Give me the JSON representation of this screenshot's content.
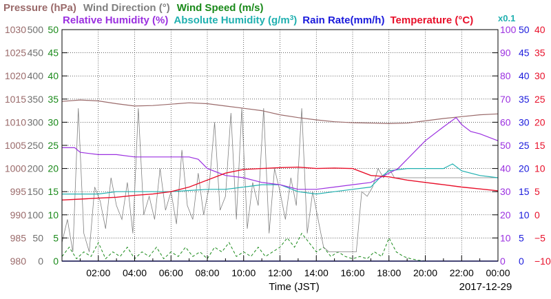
{
  "chart_data": {
    "type": "line",
    "legend": {
      "row1": [
        {
          "key": "pressure",
          "text": "Pressure (hPa)",
          "color": "#9a6a6a"
        },
        {
          "key": "wind_dir",
          "text": "Wind Direction (°)",
          "color": "#7f7f7f"
        },
        {
          "key": "wind_speed",
          "text": "Wind Speed (m/s)",
          "color": "#1a8a1a"
        }
      ],
      "row2": [
        {
          "key": "rel_hum",
          "text": "Relative Humidity (%)",
          "color": "#9b30e0"
        },
        {
          "key": "abs_hum",
          "text": "Absolute Humidity (g/m",
          "sup": "3",
          "tail": ")",
          "color": "#20b0b0"
        },
        {
          "key": "rain",
          "text": "Rain Rate(mm/h)",
          "color": "#1a1adc"
        },
        {
          "key": "temp",
          "text": "Temperature (°C)",
          "color": "#e8102a"
        },
        {
          "key": "scale_note",
          "text": "x0.1",
          "color": "#20b0b0"
        }
      ]
    },
    "x_axis": {
      "label": "Time (JST)",
      "date": "2017-12-29",
      "ticks": [
        "02:00",
        "04:00",
        "06:00",
        "08:00",
        "10:00",
        "12:00",
        "14:00",
        "16:00",
        "18:00",
        "20:00",
        "22:00",
        "00:00"
      ],
      "range_hours": [
        0,
        24
      ]
    },
    "left_axes": [
      {
        "key": "pressure",
        "range": [
          980,
          1030
        ],
        "ticks": [
          "1030",
          "1025",
          "1020",
          "1015",
          "1010",
          "1005",
          "1000",
          "995",
          "990",
          "985",
          "980"
        ],
        "color": "#9a6a6a"
      },
      {
        "key": "wind_dir",
        "range": [
          0,
          500
        ],
        "ticks": [
          "500",
          "450",
          "400",
          "350",
          "300",
          "250",
          "200",
          "150",
          "100",
          "50",
          "0"
        ],
        "color": "#6f6f6f"
      },
      {
        "key": "wind_speed",
        "range": [
          0,
          50
        ],
        "ticks": [
          "50",
          "45",
          "40",
          "35",
          "30",
          "25",
          "20",
          "15",
          "10",
          "5",
          "0"
        ],
        "color": "#1a8a1a"
      }
    ],
    "right_axes": [
      {
        "key": "rel_hum",
        "range": [
          0,
          100
        ],
        "ticks": [
          "100",
          "90",
          "80",
          "70",
          "60",
          "50",
          "40",
          "30",
          "20",
          "10",
          "0"
        ],
        "color": "#9b30e0"
      },
      {
        "key": "rain",
        "range": [
          0,
          50
        ],
        "ticks": [
          "50",
          "45",
          "40",
          "35",
          "30",
          "25",
          "20",
          "15",
          "10",
          "5",
          "0"
        ],
        "color": "#1a1adc"
      },
      {
        "key": "temp",
        "range": [
          -10,
          40
        ],
        "ticks": [
          "40",
          "35",
          "30",
          "25",
          "20",
          "15",
          "10",
          "5",
          "0",
          "−5",
          "−10"
        ],
        "color": "#e8102a"
      }
    ],
    "series": [
      {
        "name": "Pressure (hPa)",
        "key": "pressure",
        "color": "#9a6a6a",
        "axis": "pressure",
        "x": [
          0,
          1,
          2,
          3,
          4,
          5,
          6,
          7,
          8,
          9,
          10,
          11,
          12,
          13,
          14,
          15,
          16,
          17,
          18,
          19,
          20,
          21,
          22,
          23,
          24
        ],
        "y": [
          1014.5,
          1014.8,
          1014.6,
          1014.0,
          1013.5,
          1013.6,
          1013.9,
          1014.2,
          1014.0,
          1013.5,
          1013.0,
          1012.5,
          1011.6,
          1011.0,
          1010.5,
          1010.1,
          1009.9,
          1009.8,
          1009.7,
          1009.8,
          1010.3,
          1010.8,
          1011.2,
          1011.6,
          1011.8
        ]
      },
      {
        "name": "Relative Humidity (%)",
        "key": "rel_hum",
        "color": "#9b30e0",
        "axis": "rel_hum",
        "x": [
          0,
          0.7,
          1,
          2,
          3,
          4,
          5,
          6,
          7,
          7.5,
          8,
          9,
          10,
          11,
          12,
          12.5,
          13,
          14,
          15,
          16,
          17,
          18,
          18.5,
          19,
          20,
          21,
          21.7,
          22,
          22.5,
          23,
          24
        ],
        "y": [
          49,
          49,
          47,
          46,
          46,
          45,
          45,
          45,
          45,
          44,
          40,
          37,
          36,
          34,
          33,
          32,
          31,
          31,
          32,
          33,
          34,
          38,
          40,
          44,
          52,
          58,
          62,
          59,
          56,
          55,
          52
        ]
      },
      {
        "name": "Absolute Humidity (g/m3)",
        "key": "abs_hum",
        "color": "#20b0b0",
        "axis": "rel_hum",
        "x": [
          0,
          1,
          2,
          3,
          4,
          5,
          6,
          7,
          8,
          9,
          10,
          11,
          12,
          13,
          14,
          15,
          16,
          17,
          17.5,
          18,
          19,
          20,
          21,
          21.5,
          22,
          23,
          24
        ],
        "y": [
          29,
          29,
          29,
          30,
          30,
          30,
          30,
          30.5,
          31,
          31,
          32,
          33,
          33,
          30,
          29,
          30,
          31,
          32,
          36,
          39,
          40,
          40,
          40,
          42,
          39,
          37,
          36
        ]
      },
      {
        "name": "Temperature (°C)",
        "key": "temp",
        "color": "#e8102a",
        "axis": "temp",
        "x": [
          0,
          1,
          2,
          3,
          4,
          5,
          6,
          7,
          8,
          9,
          10,
          11,
          12,
          13,
          14,
          15,
          16,
          17,
          18,
          19,
          20,
          21,
          22,
          23,
          24
        ],
        "y": [
          3.2,
          3.4,
          3.6,
          3.8,
          4.2,
          4.5,
          5.0,
          6.0,
          7.5,
          9.0,
          9.8,
          10.0,
          10.2,
          10.3,
          10.0,
          10.1,
          10.0,
          8.5,
          8.2,
          7.5,
          7.0,
          6.5,
          6.0,
          5.6,
          5.2
        ]
      },
      {
        "name": "Wind Direction (°)",
        "key": "wind_dir",
        "color": "#7f7f7f",
        "axis": "wind_dir",
        "x": [
          0,
          0.3,
          0.6,
          0.9,
          1.2,
          1.5,
          1.8,
          2.1,
          2.4,
          2.7,
          3.0,
          3.3,
          3.6,
          3.9,
          4.2,
          4.5,
          4.8,
          5.1,
          5.4,
          5.7,
          6.0,
          6.3,
          6.6,
          6.9,
          7.2,
          7.5,
          7.8,
          8.1,
          8.4,
          8.7,
          9.0,
          9.3,
          9.6,
          9.9,
          10.2,
          10.5,
          10.8,
          11.1,
          11.4,
          11.7,
          12.0,
          12.3,
          12.6,
          12.9,
          13.2,
          13.5,
          13.8,
          14.1,
          14.4,
          14.7,
          15.0,
          15.3,
          15.6,
          15.9,
          16.2,
          16.5,
          16.8,
          17.1,
          17.4,
          17.7,
          18.0,
          18.3,
          18.6,
          18.9,
          19.2,
          19.5,
          19.8,
          20.1,
          20.4,
          20.7,
          21.0,
          21.3,
          21.6,
          21.9,
          22.2,
          22.5,
          22.8,
          23.1,
          23.4,
          23.7,
          24
        ],
        "y": [
          40,
          90,
          20,
          330,
          60,
          20,
          160,
          130,
          70,
          180,
          120,
          90,
          170,
          60,
          330,
          100,
          140,
          90,
          200,
          110,
          150,
          80,
          240,
          120,
          90,
          190,
          100,
          160,
          300,
          110,
          140,
          320,
          90,
          330,
          70,
          170,
          120,
          330,
          60,
          200,
          150,
          90,
          180,
          120,
          330,
          60,
          150,
          90,
          30,
          20,
          20,
          20,
          20,
          20,
          20,
          150,
          140,
          160,
          200,
          180,
          200,
          180,
          180,
          180,
          180,
          180,
          180,
          180,
          180,
          180,
          180,
          180,
          180,
          180,
          180,
          180,
          180,
          180,
          180,
          180,
          180
        ]
      },
      {
        "name": "Wind Speed (m/s)",
        "key": "wind_speed",
        "color": "#1a8a1a",
        "axis": "wind_speed",
        "x": [
          0,
          0.4,
          0.8,
          1.2,
          1.6,
          2.0,
          2.4,
          2.8,
          3.2,
          3.6,
          4.0,
          4.4,
          4.8,
          5.2,
          5.6,
          6.0,
          6.4,
          6.8,
          7.2,
          7.6,
          8.0,
          8.4,
          8.8,
          9.2,
          9.6,
          10.0,
          10.4,
          10.8,
          11.2,
          11.6,
          12.0,
          12.4,
          12.8,
          13.2,
          13.6,
          14.0,
          14.4,
          14.8,
          15.2,
          15.6,
          16.0,
          16.4,
          16.8,
          17.2,
          17.6,
          18.0,
          18.4,
          18.8,
          19.2,
          19.6,
          20.0,
          21,
          22,
          23,
          24
        ],
        "y": [
          1,
          3,
          0.5,
          2,
          1,
          4,
          0.5,
          2,
          1,
          3,
          0.5,
          2,
          1,
          3,
          0.5,
          2,
          1,
          3,
          1,
          2,
          0.5,
          3,
          2,
          4,
          1,
          2,
          1,
          3,
          1,
          2,
          3,
          5,
          3,
          6,
          4,
          2,
          3,
          1,
          2,
          1,
          0.5,
          1,
          0.5,
          2,
          1,
          5,
          2,
          1,
          0.5,
          0.2,
          0,
          0,
          0,
          0,
          0
        ]
      },
      {
        "name": "Rain Rate(mm/h)",
        "key": "rain",
        "color": "#1a1adc",
        "axis": "rain",
        "x": [
          0,
          24
        ],
        "y": [
          0,
          0
        ]
      }
    ],
    "ylim_note": "multiple scaled axes share one plot area"
  }
}
